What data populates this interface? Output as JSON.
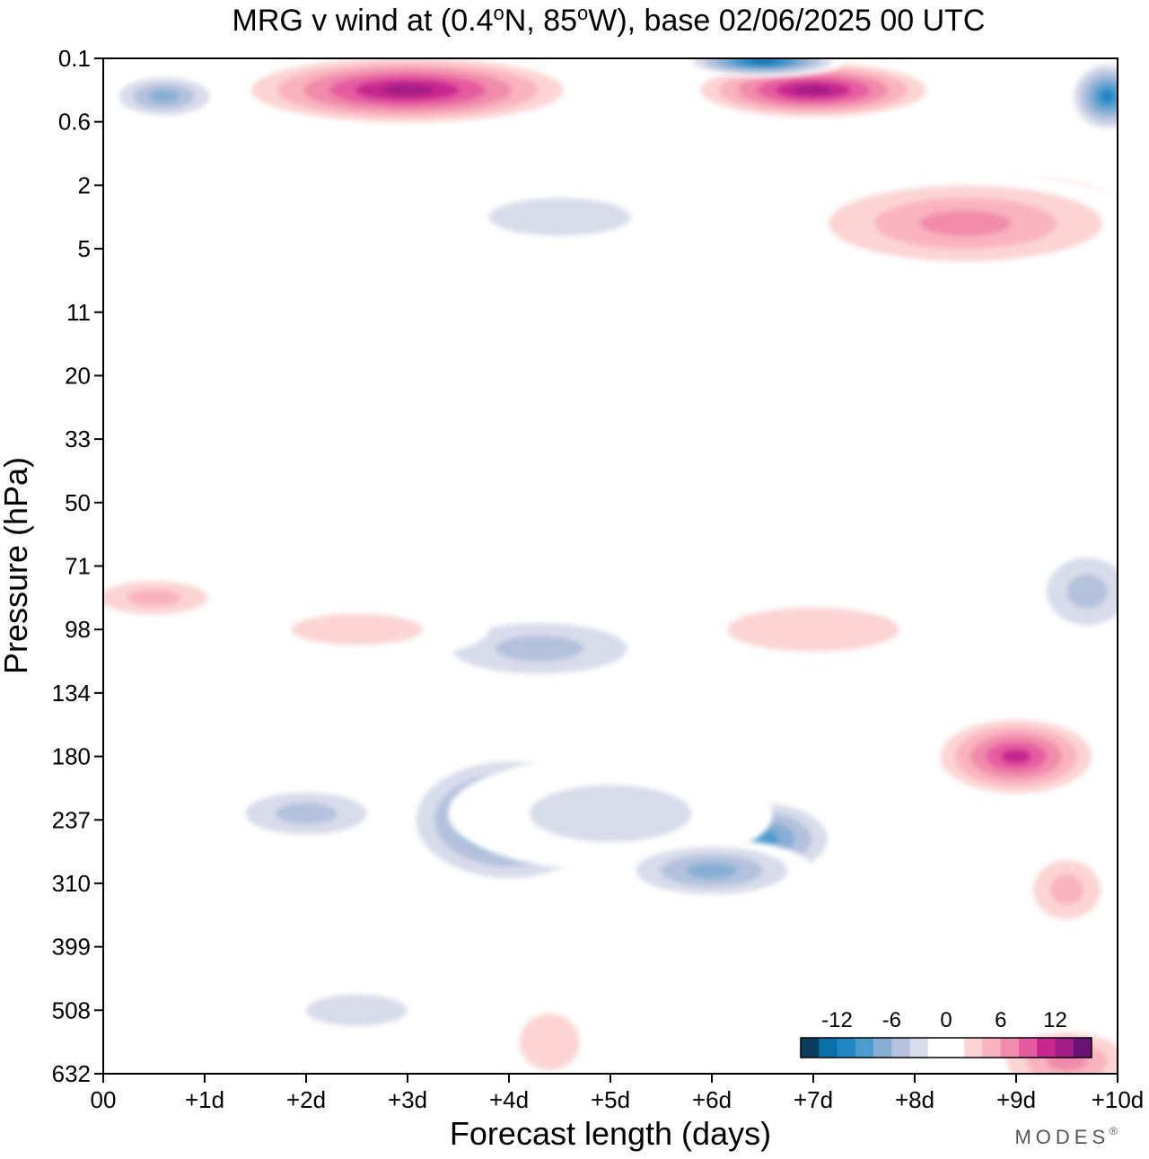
{
  "chart_data": {
    "type": "heatmap",
    "title": {
      "t1": "MRG v wind at (0.4",
      "deg": "o",
      "t2": "N, 85",
      "t3": "W),  base 02/06/2025  00 UTC"
    },
    "xlabel": "Forecast length (days)",
    "ylabel": "Pressure (hPa)",
    "x_ticks": [
      {
        "day": 0,
        "label": "00"
      },
      {
        "day": 1,
        "label": "+1d"
      },
      {
        "day": 2,
        "label": "+2d"
      },
      {
        "day": 3,
        "label": "+3d"
      },
      {
        "day": 4,
        "label": "+4d"
      },
      {
        "day": 5,
        "label": "+5d"
      },
      {
        "day": 6,
        "label": "+6d"
      },
      {
        "day": 7,
        "label": "+7d"
      },
      {
        "day": 8,
        "label": "+8d"
      },
      {
        "day": 9,
        "label": "+9d"
      },
      {
        "day": 10,
        "label": "+10d"
      }
    ],
    "y_ticks": [
      "0.1",
      "0.6",
      "2",
      "5",
      "11",
      "20",
      "33",
      "50",
      "71",
      "98",
      "134",
      "180",
      "237",
      "310",
      "399",
      "508",
      "632"
    ],
    "xlim": [
      0,
      10
    ],
    "y_scale": "categorical pressure levels (top 0.1 hPa, bottom 632 hPa)",
    "colorbar": {
      "placement": "bottom-right",
      "labels": [
        "-12",
        "-6",
        "0",
        "6",
        "12"
      ],
      "label_values": [
        -12,
        -6,
        0,
        6,
        12
      ],
      "levels": [
        -16,
        -14,
        -12,
        -10,
        -8,
        -6,
        -4,
        -2,
        0,
        2,
        4,
        6,
        8,
        10,
        12,
        14,
        16
      ],
      "colors": [
        "#0b3d5c",
        "#0a6ea8",
        "#1f86c2",
        "#4d9ccd",
        "#86aed4",
        "#b3c1dd",
        "#d8dbea",
        "#ffffff",
        "#ffffff",
        "#fcd4d4",
        "#f9b2bf",
        "#f08bab",
        "#e65ca0",
        "#c8278f",
        "#a21c86",
        "#6a1275"
      ]
    },
    "regions": [
      {
        "x": 4.0,
        "level": 12.0,
        "rx": 1.1,
        "ry": 1.1,
        "value": -11
      },
      {
        "x": 6.5,
        "level": 12.3,
        "rx": 0.8,
        "ry": 0.7,
        "value": -10
      },
      {
        "x": 2.0,
        "level": 11.9,
        "rx": 0.9,
        "ry": 0.5,
        "value": -6
      },
      {
        "x": 5.0,
        "level": 11.9,
        "rx": 1.6,
        "ry": 0.9,
        "value": -4
      },
      {
        "x": 4.3,
        "level": 9.3,
        "rx": 1.3,
        "ry": 0.6,
        "value": -5
      },
      {
        "x": 7.0,
        "level": 9.3,
        "rx": 0.8,
        "ry": 0.5,
        "value": -5
      },
      {
        "x": 9.7,
        "level": 8.4,
        "rx": 0.6,
        "ry": 0.8,
        "value": -6
      },
      {
        "x": 9.0,
        "level": 11.0,
        "rx": 0.9,
        "ry": 0.7,
        "value": 12
      },
      {
        "x": 9.5,
        "level": 13.1,
        "rx": 0.5,
        "ry": 0.7,
        "value": 6
      },
      {
        "x": 9.5,
        "level": 15.8,
        "rx": 0.8,
        "ry": 0.6,
        "value": 8
      },
      {
        "x": 4.4,
        "level": 15.5,
        "rx": 0.6,
        "ry": 0.9,
        "value": 3
      },
      {
        "x": 2.5,
        "level": 15.0,
        "rx": 1.0,
        "ry": 0.5,
        "value": -3
      },
      {
        "x": 7.0,
        "level": 9.0,
        "rx": 1.7,
        "ry": 0.7,
        "value": 4
      },
      {
        "x": 2.5,
        "level": 9.0,
        "rx": 1.3,
        "ry": 0.5,
        "value": 4
      },
      {
        "x": 0.5,
        "level": 8.5,
        "rx": 0.8,
        "ry": 0.4,
        "value": 6
      },
      {
        "x": 3.0,
        "level": 0.5,
        "rx": 1.8,
        "ry": 0.6,
        "value": 14
      },
      {
        "x": 7.0,
        "level": 0.5,
        "rx": 1.3,
        "ry": 0.5,
        "value": 14
      },
      {
        "x": 9.2,
        "level": 2.4,
        "rx": 1.0,
        "ry": 0.6,
        "value": 12
      },
      {
        "x": 8.5,
        "level": 2.6,
        "rx": 1.8,
        "ry": 0.8,
        "value": 8
      },
      {
        "x": 0.6,
        "level": 0.6,
        "rx": 0.6,
        "ry": 0.4,
        "value": -8
      },
      {
        "x": 6.5,
        "level": 0.05,
        "rx": 0.8,
        "ry": 0.25,
        "value": -14
      },
      {
        "x": 9.9,
        "level": 0.6,
        "rx": 0.4,
        "ry": 0.6,
        "value": -12
      },
      {
        "x": 4.5,
        "level": 2.5,
        "rx": 1.4,
        "ry": 0.6,
        "value": -4
      },
      {
        "x": 6.0,
        "level": 12.8,
        "rx": 1.0,
        "ry": 0.5,
        "value": -7
      }
    ]
  },
  "watermark": "MODES",
  "watermark_mark": "®"
}
